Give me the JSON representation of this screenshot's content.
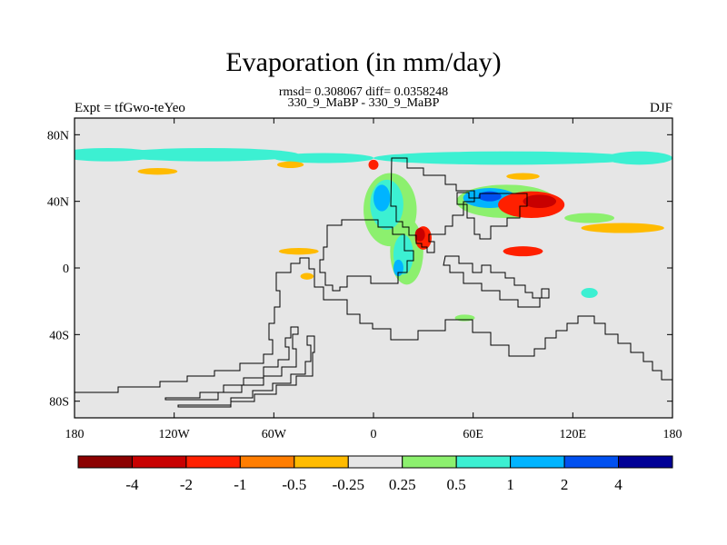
{
  "chart_data": {
    "type": "heatmap",
    "title": "Evaporation (in mm/day)",
    "subtitle_stats": "rmsd= 0.308067 diff= 0.0358248",
    "subtitle_run": "330_9_MaBP - 330_9_MaBP",
    "left_label": "Expt = tfGwo-teYeo",
    "right_label": "DJF",
    "xlim": [
      -180,
      180
    ],
    "ylim": [
      -90,
      90
    ],
    "x_ticks": [
      {
        "value": -180,
        "label": "180"
      },
      {
        "value": -120,
        "label": "120W"
      },
      {
        "value": -60,
        "label": "60W"
      },
      {
        "value": 0,
        "label": "0"
      },
      {
        "value": 60,
        "label": "60E"
      },
      {
        "value": 120,
        "label": "120E"
      },
      {
        "value": 180,
        "label": "180"
      }
    ],
    "y_ticks": [
      {
        "value": 80,
        "label": "80N"
      },
      {
        "value": 40,
        "label": "40N"
      },
      {
        "value": 0,
        "label": "0"
      },
      {
        "value": -40,
        "label": "40S"
      },
      {
        "value": -80,
        "label": "80S"
      }
    ],
    "background_color": "#e6e6e6",
    "colorbar": {
      "colors": [
        "#8b0000",
        "#c80000",
        "#ff2000",
        "#ff7d00",
        "#ffbb00",
        "#e6e6e6",
        "#8cf06e",
        "#3cf0d2",
        "#00b4ff",
        "#0050f0",
        "#000096"
      ],
      "labels": [
        "-4",
        "-2",
        "-1",
        "-0.5",
        "-0.25",
        "0.25",
        "0.5",
        "1",
        "2",
        "4"
      ]
    },
    "fields": [
      {
        "lon": -160,
        "lat": 68,
        "rx": 30,
        "ry": 4,
        "color": "#3cf0d2"
      },
      {
        "lon": -100,
        "lat": 68,
        "rx": 55,
        "ry": 4,
        "color": "#3cf0d2"
      },
      {
        "lon": -30,
        "lat": 66,
        "rx": 30,
        "ry": 3,
        "color": "#3cf0d2"
      },
      {
        "lon": 80,
        "lat": 66,
        "rx": 80,
        "ry": 4,
        "color": "#3cf0d2"
      },
      {
        "lon": 160,
        "lat": 66,
        "rx": 20,
        "ry": 4,
        "color": "#3cf0d2"
      },
      {
        "lon": -130,
        "lat": 58,
        "rx": 12,
        "ry": 2,
        "color": "#ffbb00"
      },
      {
        "lon": -50,
        "lat": 62,
        "rx": 8,
        "ry": 2,
        "color": "#ffbb00"
      },
      {
        "lon": 0,
        "lat": 62,
        "rx": 3,
        "ry": 3,
        "color": "#ff2000"
      },
      {
        "lon": 90,
        "lat": 55,
        "rx": 10,
        "ry": 2,
        "color": "#ffbb00"
      },
      {
        "lon": 10,
        "lat": 35,
        "rx": 16,
        "ry": 22,
        "color": "#8cf06e"
      },
      {
        "lon": 8,
        "lat": 38,
        "rx": 10,
        "ry": 15,
        "color": "#3cf0d2"
      },
      {
        "lon": 5,
        "lat": 42,
        "rx": 5,
        "ry": 8,
        "color": "#00b4ff"
      },
      {
        "lon": 20,
        "lat": 10,
        "rx": 10,
        "ry": 20,
        "color": "#8cf06e"
      },
      {
        "lon": 18,
        "lat": 8,
        "rx": 6,
        "ry": 12,
        "color": "#3cf0d2"
      },
      {
        "lon": 15,
        "lat": 0,
        "rx": 3,
        "ry": 5,
        "color": "#00b4ff"
      },
      {
        "lon": 30,
        "lat": 18,
        "rx": 5,
        "ry": 7,
        "color": "#ff2000"
      },
      {
        "lon": 28,
        "lat": 20,
        "rx": 3,
        "ry": 4,
        "color": "#c80000"
      },
      {
        "lon": 80,
        "lat": 40,
        "rx": 30,
        "ry": 10,
        "color": "#8cf06e"
      },
      {
        "lon": 70,
        "lat": 42,
        "rx": 16,
        "ry": 6,
        "color": "#00b4ff"
      },
      {
        "lon": 70,
        "lat": 43,
        "rx": 7,
        "ry": 3,
        "color": "#0050f0"
      },
      {
        "lon": 95,
        "lat": 38,
        "rx": 20,
        "ry": 8,
        "color": "#ff2000"
      },
      {
        "lon": 100,
        "lat": 40,
        "rx": 10,
        "ry": 4,
        "color": "#c80000"
      },
      {
        "lon": 90,
        "lat": 10,
        "rx": 12,
        "ry": 3,
        "color": "#ff2000"
      },
      {
        "lon": 130,
        "lat": 30,
        "rx": 15,
        "ry": 3,
        "color": "#8cf06e"
      },
      {
        "lon": 150,
        "lat": 24,
        "rx": 25,
        "ry": 3,
        "color": "#ffbb00"
      },
      {
        "lon": 130,
        "lat": -15,
        "rx": 5,
        "ry": 3,
        "color": "#3cf0d2"
      },
      {
        "lon": -45,
        "lat": 10,
        "rx": 12,
        "ry": 2,
        "color": "#ffbb00"
      },
      {
        "lon": -40,
        "lat": -5,
        "rx": 4,
        "ry": 2,
        "color": "#ffbb00"
      },
      {
        "lon": 55,
        "lat": -30,
        "rx": 6,
        "ry": 2,
        "color": "#8cf06e"
      }
    ]
  }
}
